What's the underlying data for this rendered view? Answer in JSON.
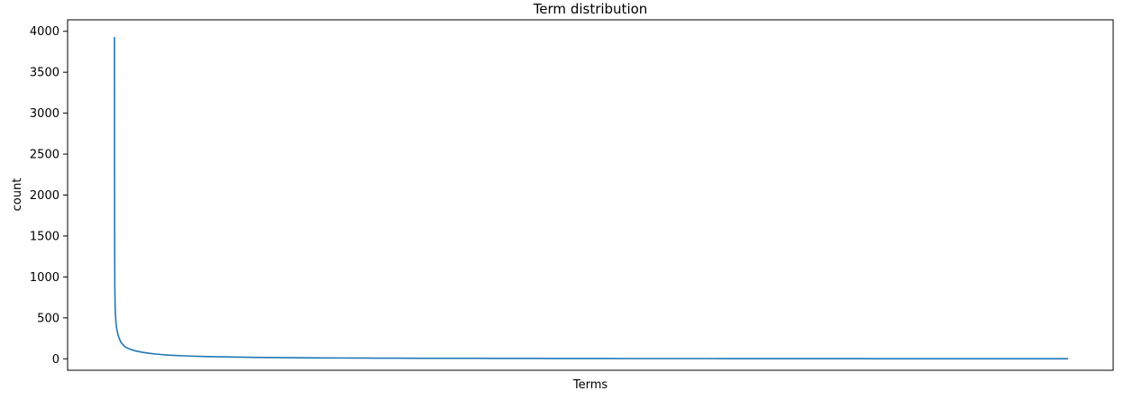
{
  "chart_data": {
    "type": "line",
    "title": "Term distribution",
    "xlabel": "Terms",
    "ylabel": "count",
    "xticks": "none",
    "ylim": [
      -140,
      4140
    ],
    "yticks": [
      0,
      500,
      1000,
      1500,
      2000,
      2500,
      3000,
      3500,
      4000
    ],
    "ytick_labels": [
      "0",
      "500",
      "1000",
      "1500",
      "2000",
      "2500",
      "3000",
      "3500",
      "4000"
    ],
    "grid": false,
    "legend": "none",
    "series": [
      {
        "color": "#1f77b4",
        "x": [
          0,
          1,
          2,
          3,
          4,
          5,
          7,
          10,
          14,
          20,
          27,
          35,
          45,
          60,
          80,
          100,
          130,
          170,
          220,
          280,
          350,
          450,
          550,
          650,
          750,
          850,
          950,
          1100,
          1250,
          1400,
          1550,
          1700,
          1850,
          2000,
          2200,
          2400,
          2600,
          2800,
          3000,
          3300,
          3600,
          3900,
          4200,
          4500,
          4800,
          5100,
          5400,
          5700,
          6000,
          6300,
          6600,
          6900,
          7200,
          7500,
          7800,
          8100,
          8400,
          8700,
          9000,
          9300,
          9600,
          9900,
          10200,
          10500,
          10800,
          11100,
          11400,
          11700,
          12000,
          12300,
          12600,
          12900,
          13200,
          13500,
          13800,
          14100,
          14400,
          14700,
          15000
        ],
        "y": [
          3930,
          2600,
          1900,
          1500,
          1200,
          950,
          800,
          650,
          560,
          480,
          420,
          370,
          330,
          280,
          240,
          205,
          175,
          145,
          125,
          108,
          93,
          78,
          67,
          58,
          51,
          45,
          41,
          36,
          32,
          29,
          26,
          24,
          22,
          20,
          18,
          16,
          15,
          13,
          12,
          11,
          10,
          9,
          8,
          8,
          7,
          7,
          6,
          6,
          5,
          5,
          5,
          4,
          4,
          4,
          4,
          3,
          3,
          3,
          3,
          3,
          2,
          2,
          2,
          2,
          2,
          2,
          2,
          2,
          1,
          1,
          1,
          1,
          1,
          1,
          1,
          1,
          1,
          1,
          1
        ]
      }
    ]
  }
}
